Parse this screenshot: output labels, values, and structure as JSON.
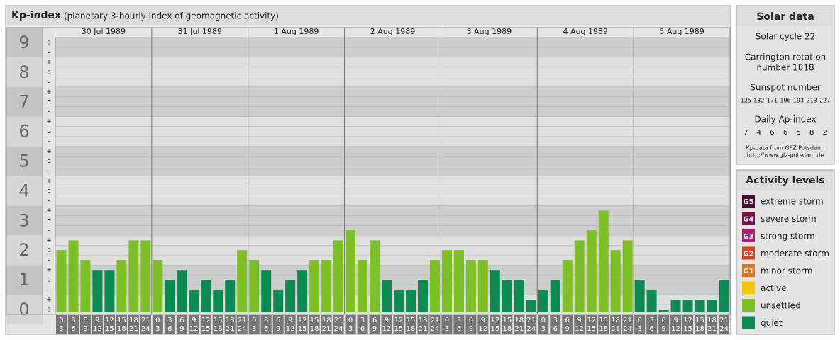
{
  "chart_data": {
    "type": "bar",
    "title": "Kp-index",
    "subtitle": "(planetary 3-hourly index of geomagnetic activity)",
    "days": [
      "30 Jul 1989",
      "31 Jul 1989",
      "1 Aug 1989",
      "2 Aug 1989",
      "3 Aug 1989",
      "4 Aug 1989",
      "5 Aug 1989"
    ],
    "hour_labels": [
      [
        "0",
        "3"
      ],
      [
        "3",
        "6"
      ],
      [
        "6",
        "9"
      ],
      [
        "9",
        "12"
      ],
      [
        "12",
        "15"
      ],
      [
        "15",
        "18"
      ],
      [
        "18",
        "21"
      ],
      [
        "21",
        "24"
      ]
    ],
    "values": [
      2,
      2.33,
      1.67,
      1.33,
      1.33,
      1.67,
      2.33,
      2.33,
      1.67,
      1,
      1.33,
      0.67,
      1,
      0.67,
      1,
      2,
      1.67,
      1.33,
      0.67,
      1,
      1.33,
      1.67,
      1.67,
      2.33,
      2.67,
      1.67,
      2.33,
      1,
      0.67,
      0.67,
      1,
      1.67,
      2,
      2,
      1.67,
      1.67,
      1.33,
      1,
      1,
      0.33,
      0.67,
      1,
      1.67,
      2.33,
      2.67,
      3.33,
      2,
      2.33,
      1,
      0.67,
      0,
      0.33,
      0.33,
      0.33,
      0.33,
      1
    ],
    "colors": [
      "#7cc026",
      "#7cc026",
      "#7cc026",
      "#0b8a54",
      "#0b8a54",
      "#7cc026",
      "#7cc026",
      "#7cc026",
      "#7cc026",
      "#0b8a54",
      "#0b8a54",
      "#0b8a54",
      "#0b8a54",
      "#0b8a54",
      "#0b8a54",
      "#7cc026",
      "#7cc026",
      "#0b8a54",
      "#0b8a54",
      "#0b8a54",
      "#0b8a54",
      "#7cc026",
      "#7cc026",
      "#7cc026",
      "#7cc026",
      "#7cc026",
      "#7cc026",
      "#0b8a54",
      "#0b8a54",
      "#0b8a54",
      "#0b8a54",
      "#7cc026",
      "#7cc026",
      "#7cc026",
      "#7cc026",
      "#7cc026",
      "#0b8a54",
      "#0b8a54",
      "#0b8a54",
      "#0b8a54",
      "#0b8a54",
      "#0b8a54",
      "#7cc026",
      "#7cc026",
      "#7cc026",
      "#7cc026",
      "#7cc026",
      "#7cc026",
      "#0b8a54",
      "#0b8a54",
      "#0b8a54",
      "#0b8a54",
      "#0b8a54",
      "#0b8a54",
      "#0b8a54",
      "#0b8a54"
    ],
    "ylim": [
      -0.167,
      9.5
    ],
    "yticks": [
      0,
      1,
      2,
      3,
      4,
      5,
      6,
      7,
      8,
      9
    ],
    "minor_ticks": [
      {
        "value": -0.333,
        "label": "-"
      },
      {
        "value": 0,
        "label": "o"
      },
      {
        "value": 0.333,
        "label": "+"
      }
    ],
    "solar": {
      "title": "Solar data",
      "cycle": "Solar cycle 22",
      "carrington": [
        "Carrington rotation",
        "number 1818"
      ],
      "sunspot_title": "Sunspot number",
      "sunspot": [
        125,
        132,
        171,
        196,
        193,
        213,
        227
      ],
      "ap_title": "Daily Ap-index",
      "ap": [
        7,
        4,
        6,
        6,
        5,
        8,
        2
      ],
      "source": [
        "Kp-data from GFZ Potsdam:",
        "http://www.gfz-potsdam.de"
      ]
    },
    "legend": {
      "title": "Activity levels",
      "items": [
        {
          "code": "G5",
          "name": "extreme storm",
          "color": "#4a0b2a"
        },
        {
          "code": "G4",
          "name": "severe storm",
          "color": "#78104a"
        },
        {
          "code": "G3",
          "name": "strong storm",
          "color": "#b41e72"
        },
        {
          "code": "G2",
          "name": "moderate storm",
          "color": "#d8401e"
        },
        {
          "code": "G1",
          "name": "minor storm",
          "color": "#e2761e"
        },
        {
          "code": null,
          "name": "active",
          "color": "#f8c400"
        },
        {
          "code": null,
          "name": "unsettled",
          "color": "#7cc026"
        },
        {
          "code": null,
          "name": "quiet",
          "color": "#0b8a54"
        }
      ]
    }
  }
}
